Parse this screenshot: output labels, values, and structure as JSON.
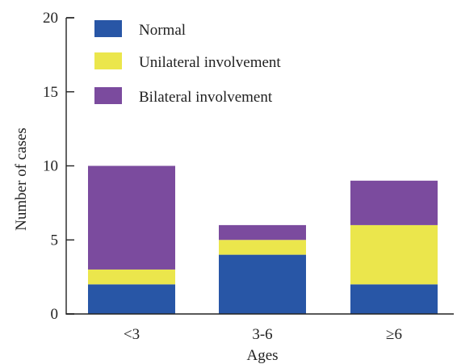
{
  "chart_data": {
    "type": "bar",
    "stacked": true,
    "categories": [
      "<3",
      "3-6",
      "≥6"
    ],
    "series": [
      {
        "name": "Normal",
        "color": "#2856a6",
        "values": [
          2,
          4,
          2
        ]
      },
      {
        "name": "Unilateral involvement",
        "color": "#ebe64c",
        "values": [
          1,
          1,
          4
        ]
      },
      {
        "name": "Bilateral involvement",
        "color": "#7b4b9e",
        "values": [
          7,
          1,
          3
        ]
      }
    ],
    "title": "",
    "xlabel": "Ages",
    "ylabel": "Number of cases",
    "ylim": [
      0,
      20
    ],
    "yticks": [
      "0",
      "5",
      "10",
      "15",
      "20"
    ],
    "grid": false,
    "legend_position": "top-left"
  }
}
